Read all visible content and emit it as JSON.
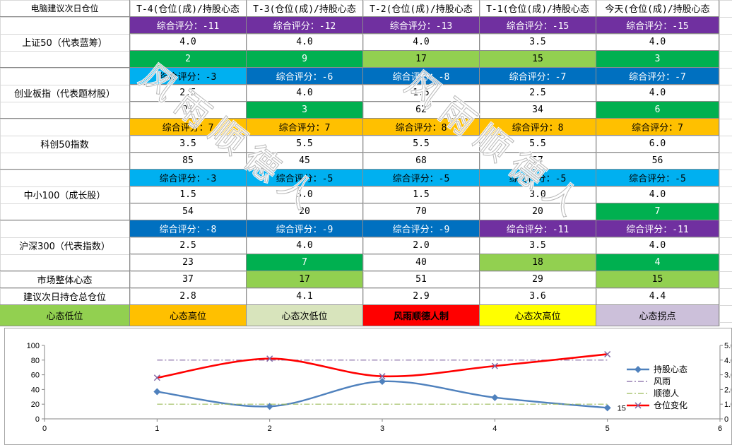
{
  "colors": {
    "purple": "#7030a0",
    "green_dark": "#00b050",
    "green_light": "#92d050",
    "blue_light": "#00b0f0",
    "blue_dark": "#0070c0",
    "orange": "#ffc000",
    "red": "#ff0000",
    "yellow": "#ffff00",
    "pale_green": "#d8e4bc",
    "lavender": "#ccc0da"
  },
  "table": {
    "corner": "电脑建议次日仓位",
    "columns": [
      "T-4(仓位(成)/持股心态",
      "T-3(仓位(成)/持股心态",
      "T-2(仓位(成)/持股心态",
      "T-1(仓位(成)/持股心态",
      "今天(仓位(成)/持股心态"
    ],
    "groups": [
      {
        "name": "上证50（代表蓝筹）",
        "score": [
          "综合评分：-11",
          "综合评分：-12",
          "综合评分：-13",
          "综合评分：-15",
          "综合评分：-15"
        ],
        "score_colors": [
          "purple",
          "purple",
          "purple",
          "purple",
          "purple"
        ],
        "position": [
          "4.0",
          "4.0",
          "4.0",
          "3.5",
          "4.0"
        ],
        "mood": [
          "2",
          "9",
          "17",
          "15",
          "3"
        ],
        "mood_colors": [
          "green_dark",
          "green_dark",
          "green_light",
          "green_light",
          "green_dark"
        ]
      },
      {
        "name": "创业板指（代表题材股）",
        "score": [
          "综合评分：-3",
          "综合评分：-6",
          "综合评分：-8",
          "综合评分：-7",
          "综合评分：-7"
        ],
        "score_colors": [
          "blue_light",
          "blue_dark",
          "blue_dark",
          "blue_dark",
          "blue_dark"
        ],
        "position": [
          "2.5",
          "4.0",
          "1.5",
          "2.5",
          "4.0"
        ],
        "mood": [
          "21",
          "3",
          "62",
          "34",
          "6"
        ],
        "mood_colors": [
          "",
          "green_dark",
          "",
          "",
          "green_dark"
        ]
      },
      {
        "name": "科创50指数",
        "score": [
          "综合评分：7",
          "综合评分：7",
          "综合评分：8",
          "综合评分：8",
          "综合评分：7"
        ],
        "score_colors": [
          "orange",
          "orange",
          "orange",
          "orange",
          "orange"
        ],
        "position": [
          "3.5",
          "5.5",
          "5.5",
          "5.5",
          "6.0"
        ],
        "mood": [
          "85",
          "45",
          "68",
          "57",
          "56"
        ],
        "mood_colors": [
          "",
          "",
          "",
          "",
          ""
        ]
      },
      {
        "name": "中小100（成长股）",
        "score": [
          "综合评分：-3",
          "综合评分：-5",
          "综合评分：-5",
          "综合评分：-5",
          "综合评分：-5"
        ],
        "score_colors": [
          "blue_light",
          "blue_light",
          "blue_light",
          "blue_light",
          "blue_light"
        ],
        "position": [
          "1.5",
          "3.0",
          "1.5",
          "3.0",
          "4.0"
        ],
        "mood": [
          "54",
          "20",
          "70",
          "20",
          "7"
        ],
        "mood_colors": [
          "",
          "",
          "",
          "",
          "green_dark"
        ]
      },
      {
        "name": "沪深300（代表指数）",
        "score": [
          "综合评分：-8",
          "综合评分：-9",
          "综合评分：-9",
          "综合评分：-11",
          "综合评分：-11"
        ],
        "score_colors": [
          "blue_dark",
          "blue_dark",
          "blue_dark",
          "purple",
          "purple"
        ],
        "position": [
          "2.5",
          "4.0",
          "2.0",
          "3.5",
          "4.0"
        ],
        "mood": [
          "23",
          "7",
          "40",
          "18",
          "4"
        ],
        "mood_colors": [
          "",
          "green_dark",
          "",
          "green_light",
          "green_dark"
        ]
      }
    ],
    "market_row": {
      "label": "市场整体心态",
      "values": [
        "37",
        "17",
        "51",
        "29",
        "15"
      ],
      "colors": [
        "",
        "green_light",
        "",
        "",
        "green_light"
      ]
    },
    "total_row": {
      "label": "建议次日持仓总仓位",
      "values": [
        "2.8",
        "4.1",
        "2.9",
        "3.6",
        "4.4"
      ]
    },
    "legend_row": [
      {
        "label": "心态低位",
        "color": "green_light",
        "bold": false
      },
      {
        "label": "心态高位",
        "color": "orange",
        "bold": false
      },
      {
        "label": "心态次低位",
        "color": "pale_green",
        "bold": false
      },
      {
        "label": "风雨顺德人制",
        "color": "red",
        "bold": true
      },
      {
        "label": "心态次高位",
        "color": "yellow",
        "bold": false
      },
      {
        "label": "心态拐点",
        "color": "lavender",
        "bold": false
      }
    ]
  },
  "watermark": "风雨顺德人",
  "chart_data": {
    "type": "line",
    "x": [
      1,
      2,
      3,
      4,
      5
    ],
    "xlim": [
      0,
      6
    ],
    "xticks": [
      0,
      1,
      2,
      3,
      4,
      5,
      6
    ],
    "ylim": [
      0,
      100
    ],
    "yticks": [
      0,
      20,
      40,
      60,
      80,
      100
    ],
    "y2lim": [
      0,
      5
    ],
    "y2ticks": [
      "0",
      "1.0",
      "2.0",
      "3.0",
      "4.0",
      "5.0"
    ],
    "grid": false,
    "legend_position": "right",
    "series": [
      {
        "name": "持股心态",
        "axis": "left",
        "values": [
          37,
          17,
          51,
          29,
          15
        ],
        "color": "#4f81bd",
        "marker": "diamond",
        "smooth": true
      },
      {
        "name": "风雨",
        "axis": "left",
        "values": [
          80,
          80,
          80,
          80,
          80
        ],
        "color": "#8064a2",
        "style": "dashdot"
      },
      {
        "name": "顺德人",
        "axis": "left",
        "values": [
          20,
          20,
          20,
          20,
          20
        ],
        "color": "#9bbb59",
        "style": "dashdot"
      },
      {
        "name": "仓位变化",
        "axis": "right",
        "values": [
          2.8,
          4.1,
          2.9,
          3.6,
          4.4
        ],
        "color": "#ff0000",
        "marker": "x",
        "smooth": true
      }
    ],
    "annotations": [
      {
        "text": "15",
        "x": 5,
        "series": "持股心态"
      }
    ]
  }
}
